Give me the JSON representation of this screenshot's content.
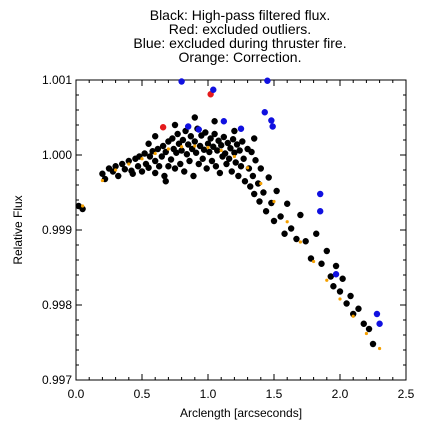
{
  "chart_data": {
    "type": "scatter",
    "title_lines": [
      "Black: High-pass filtered flux.",
      "Red: excluded outliers.",
      "Blue: excluded during thruster fire.",
      "Orange: Correction."
    ],
    "xlabel": "Arclength [arcseconds]",
    "ylabel": "Relative Flux",
    "xlim": [
      0.0,
      2.5
    ],
    "ylim": [
      0.997,
      1.001
    ],
    "x_ticks": [
      0.0,
      0.5,
      1.0,
      1.5,
      2.0,
      2.5
    ],
    "x_tick_labels": [
      "0.0",
      "0.5",
      "1.0",
      "1.5",
      "2.0",
      "2.5"
    ],
    "y_ticks": [
      0.997,
      0.998,
      0.999,
      1.0,
      1.001
    ],
    "y_tick_labels": [
      "0.997",
      "0.998",
      "0.999",
      "1.000",
      "1.001"
    ],
    "grid": false,
    "colors": {
      "black": "#000000",
      "red": "#e41a1c",
      "blue": "#1010e0",
      "orange": "#f5a000"
    },
    "series": [
      {
        "name": "High-pass filtered flux",
        "color": "#000000",
        "points": [
          [
            0.02,
            0.99932
          ],
          [
            0.05,
            0.99928
          ],
          [
            0.2,
            0.99975
          ],
          [
            0.22,
            0.99968
          ],
          [
            0.25,
            0.99982
          ],
          [
            0.28,
            0.99978
          ],
          [
            0.3,
            0.99985
          ],
          [
            0.32,
            0.99972
          ],
          [
            0.35,
            0.99988
          ],
          [
            0.37,
            0.99981
          ],
          [
            0.4,
            0.99992
          ],
          [
            0.42,
            0.99979
          ],
          [
            0.43,
            0.99975
          ],
          [
            0.45,
            0.99995
          ],
          [
            0.47,
            0.99985
          ],
          [
            0.48,
            0.99998
          ],
          [
            0.5,
            0.99978
          ],
          [
            0.52,
            1.00002
          ],
          [
            0.53,
            0.99988
          ],
          [
            0.55,
            0.99983
          ],
          [
            0.56,
            0.99998
          ],
          [
            0.58,
            1.00005
          ],
          [
            0.6,
            0.99976
          ],
          [
            0.6,
            0.99992
          ],
          [
            0.62,
            1.00008
          ],
          [
            0.63,
            0.99985
          ],
          [
            0.65,
            0.99998
          ],
          [
            0.66,
            1.00012
          ],
          [
            0.67,
            0.99972
          ],
          [
            0.68,
            1.00004
          ],
          [
            0.7,
            1.00018
          ],
          [
            0.7,
            0.99985
          ],
          [
            0.72,
            0.99994
          ],
          [
            0.73,
            1.00022
          ],
          [
            0.74,
            1.00008
          ],
          [
            0.75,
            0.99982
          ],
          [
            0.76,
            1.00003
          ],
          [
            0.77,
            1.00028
          ],
          [
            0.78,
            1.00015
          ],
          [
            0.79,
            0.99988
          ],
          [
            0.8,
            1.00006
          ],
          [
            0.81,
            1.0002
          ],
          [
            0.82,
            0.99978
          ],
          [
            0.83,
            1.00032
          ],
          [
            0.84,
            1.00001
          ],
          [
            0.85,
            1.00014
          ],
          [
            0.86,
            0.99992
          ],
          [
            0.87,
            1.00025
          ],
          [
            0.88,
            1.00008
          ],
          [
            0.89,
            0.99972
          ],
          [
            0.9,
            1.00018
          ],
          [
            0.91,
            1.00003
          ],
          [
            0.92,
            1.00035
          ],
          [
            0.93,
            0.99988
          ],
          [
            0.94,
            1.00012
          ],
          [
            0.95,
            1.00026
          ],
          [
            0.96,
            0.99995
          ],
          [
            0.97,
            1.00007
          ],
          [
            0.98,
            1.0003
          ],
          [
            0.99,
            0.99982
          ],
          [
            1.0,
            1.00015
          ],
          [
            1.01,
            1.00004
          ],
          [
            1.02,
            1.00022
          ],
          [
            1.03,
            0.99992
          ],
          [
            1.04,
            1.00011
          ],
          [
            1.05,
            1.00028
          ],
          [
            1.06,
            0.99985
          ],
          [
            1.07,
            1.00006
          ],
          [
            1.08,
            1.00019
          ],
          [
            1.09,
            0.99976
          ],
          [
            1.1,
            1.00013
          ],
          [
            1.11,
            0.99998
          ],
          [
            1.12,
            1.00024
          ],
          [
            1.13,
            1.00002
          ],
          [
            1.14,
            0.99988
          ],
          [
            1.15,
            1.00016
          ],
          [
            1.16,
            0.99995
          ],
          [
            1.17,
            1.00009
          ],
          [
            1.18,
            0.99978
          ],
          [
            1.19,
            1.00021
          ],
          [
            1.2,
            1.00003
          ],
          [
            1.21,
            0.9999
          ],
          [
            1.22,
            1.00014
          ],
          [
            1.23,
            0.99972
          ],
          [
            1.24,
            1.00006
          ],
          [
            1.25,
            0.99985
          ],
          [
            1.26,
            1.00018
          ],
          [
            1.27,
            0.99995
          ],
          [
            1.28,
            0.99965
          ],
          [
            1.3,
            1.00008
          ],
          [
            1.31,
            0.99982
          ],
          [
            1.32,
            0.99958
          ],
          [
            1.33,
            1.00004
          ],
          [
            1.34,
            0.99972
          ],
          [
            1.35,
            0.99948
          ],
          [
            1.36,
            0.99993
          ],
          [
            1.38,
            0.99962
          ],
          [
            1.39,
            0.99938
          ],
          [
            1.4,
            0.99982
          ],
          [
            1.42,
            0.9995
          ],
          [
            1.44,
            0.99925
          ],
          [
            1.46,
            0.9997
          ],
          [
            1.48,
            0.99936
          ],
          [
            1.5,
            0.99912
          ],
          [
            1.52,
            0.99952
          ],
          [
            1.55,
            0.99918
          ],
          [
            1.58,
            0.99895
          ],
          [
            1.6,
            0.99935
          ],
          [
            1.63,
            0.99902
          ],
          [
            1.67,
            0.99888
          ],
          [
            1.7,
            0.9992
          ],
          [
            1.74,
            0.99885
          ],
          [
            1.78,
            0.99862
          ],
          [
            1.82,
            0.99895
          ],
          [
            1.86,
            0.99855
          ],
          [
            1.9,
            0.99872
          ],
          [
            1.93,
            0.99838
          ],
          [
            1.95,
            0.99825
          ],
          [
            1.97,
            0.99852
          ],
          [
            2.0,
            0.99818
          ],
          [
            2.02,
            0.99835
          ],
          [
            2.05,
            0.99802
          ],
          [
            2.08,
            0.99812
          ],
          [
            2.1,
            0.99788
          ],
          [
            2.14,
            0.99795
          ],
          [
            2.18,
            0.99775
          ],
          [
            2.22,
            0.99768
          ],
          [
            2.25,
            0.99748
          ],
          [
            0.6,
            1.00025
          ],
          [
            0.75,
            1.0004
          ],
          [
            0.9,
            1.0005
          ],
          [
            1.05,
            1.00045
          ],
          [
            1.2,
            1.00032
          ],
          [
            1.35,
            1.00022
          ],
          [
            0.55,
            1.00015
          ],
          [
            0.68,
            0.99965
          ]
        ]
      },
      {
        "name": "Excluded outliers",
        "color": "#e41a1c",
        "points": [
          [
            0.66,
            1.00037
          ],
          [
            1.02,
            1.00081
          ]
        ]
      },
      {
        "name": "Excluded during thruster fire",
        "color": "#1010e0",
        "points": [
          [
            0.8,
            1.00098
          ],
          [
            0.85,
            1.00038
          ],
          [
            0.93,
            1.00034
          ],
          [
            1.04,
            1.00087
          ],
          [
            1.12,
            1.00045
          ],
          [
            1.25,
            1.00035
          ],
          [
            1.43,
            1.00057
          ],
          [
            1.45,
            1.00099
          ],
          [
            1.48,
            1.00046
          ],
          [
            1.49,
            1.00038
          ],
          [
            1.85,
            0.99948
          ],
          [
            1.85,
            0.99925
          ],
          [
            1.97,
            0.99841
          ],
          [
            2.28,
            0.99788
          ],
          [
            2.3,
            0.99775
          ]
        ]
      },
      {
        "name": "Correction",
        "color": "#f5a000",
        "points": [
          [
            0.05,
            0.99932
          ],
          [
            0.2,
            0.99966
          ],
          [
            0.3,
            0.9998
          ],
          [
            0.4,
            0.99988
          ],
          [
            0.5,
            0.99995
          ],
          [
            0.6,
            1.00002
          ],
          [
            0.7,
            1.00008
          ],
          [
            0.8,
            1.00011
          ],
          [
            0.9,
            1.00012
          ],
          [
            1.0,
            1.0001
          ],
          [
            1.1,
            1.00006
          ],
          [
            1.2,
            0.99998
          ],
          [
            1.3,
            0.99983
          ],
          [
            1.4,
            0.99962
          ],
          [
            1.5,
            0.99938
          ],
          [
            1.6,
            0.99911
          ],
          [
            1.7,
            0.99884
          ],
          [
            1.8,
            0.99858
          ],
          [
            1.9,
            0.99833
          ],
          [
            2.0,
            0.99808
          ],
          [
            2.1,
            0.99785
          ],
          [
            2.2,
            0.99762
          ],
          [
            2.3,
            0.99742
          ]
        ]
      }
    ]
  }
}
